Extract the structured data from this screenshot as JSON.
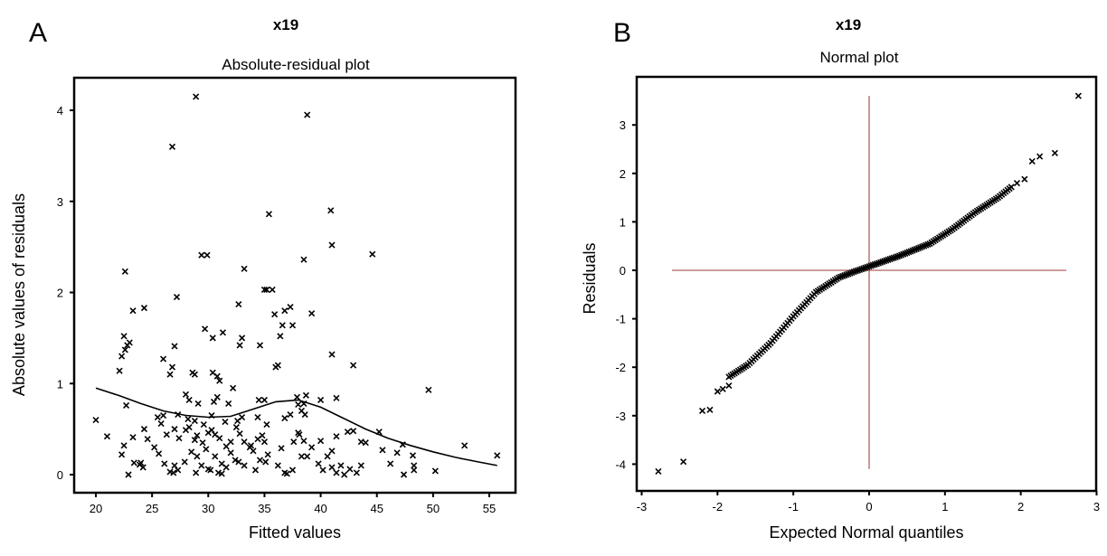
{
  "chart_data": [
    {
      "type": "scatter",
      "panel": "A",
      "variable_title": "x19",
      "title": "Absolute-residual plot",
      "xlabel": "Fitted values",
      "ylabel": "Absolute values of residuals",
      "xlim": [
        18.1,
        57.5
      ],
      "ylim": [
        -0.2,
        4.35
      ],
      "xticks": [
        20,
        25,
        30,
        35,
        40,
        45,
        50,
        55
      ],
      "yticks": [
        0,
        1,
        2,
        3,
        4
      ],
      "grid": false,
      "marker": "x",
      "points": [
        [
          28.9,
          4.15
        ],
        [
          38.8,
          3.95
        ],
        [
          26.8,
          3.6
        ],
        [
          35.4,
          2.86
        ],
        [
          40.9,
          2.9
        ],
        [
          41.0,
          2.52
        ],
        [
          44.6,
          2.42
        ],
        [
          29.4,
          2.41
        ],
        [
          29.9,
          2.41
        ],
        [
          33.2,
          2.26
        ],
        [
          38.5,
          2.36
        ],
        [
          22.6,
          2.23
        ],
        [
          35.0,
          2.03
        ],
        [
          35.2,
          2.03
        ],
        [
          35.7,
          2.03
        ],
        [
          27.2,
          1.95
        ],
        [
          32.7,
          1.87
        ],
        [
          23.3,
          1.8
        ],
        [
          24.3,
          1.83
        ],
        [
          36.8,
          1.8
        ],
        [
          39.2,
          1.77
        ],
        [
          37.3,
          1.84
        ],
        [
          35.9,
          1.76
        ],
        [
          36.6,
          1.64
        ],
        [
          37.5,
          1.64
        ],
        [
          22.5,
          1.52
        ],
        [
          23.0,
          1.45
        ],
        [
          22.8,
          1.42
        ],
        [
          22.3,
          1.3
        ],
        [
          22.6,
          1.37
        ],
        [
          22.1,
          1.14
        ],
        [
          27.0,
          1.41
        ],
        [
          29.7,
          1.6
        ],
        [
          30.4,
          1.5
        ],
        [
          32.8,
          1.42
        ],
        [
          33.0,
          1.5
        ],
        [
          31.3,
          1.56
        ],
        [
          36.4,
          1.52
        ],
        [
          34.6,
          1.42
        ],
        [
          36.2,
          1.2
        ],
        [
          36.0,
          1.18
        ],
        [
          41.0,
          1.32
        ],
        [
          42.9,
          1.2
        ],
        [
          26.0,
          1.27
        ],
        [
          26.8,
          1.18
        ],
        [
          26.6,
          1.1
        ],
        [
          28.6,
          1.12
        ],
        [
          28.8,
          1.1
        ],
        [
          30.4,
          1.12
        ],
        [
          30.8,
          1.08
        ],
        [
          31.0,
          1.03
        ],
        [
          32.2,
          0.95
        ],
        [
          28.0,
          0.88
        ],
        [
          28.3,
          0.82
        ],
        [
          29.1,
          0.78
        ],
        [
          30.8,
          0.85
        ],
        [
          30.5,
          0.8
        ],
        [
          31.8,
          0.78
        ],
        [
          34.5,
          0.82
        ],
        [
          35.0,
          0.82
        ],
        [
          37.9,
          0.85
        ],
        [
          38.7,
          0.87
        ],
        [
          40.0,
          0.82
        ],
        [
          41.4,
          0.84
        ],
        [
          22.7,
          0.76
        ],
        [
          26.0,
          0.65
        ],
        [
          27.3,
          0.66
        ],
        [
          28.2,
          0.61
        ],
        [
          28.8,
          0.59
        ],
        [
          29.6,
          0.55
        ],
        [
          30.3,
          0.65
        ],
        [
          31.5,
          0.58
        ],
        [
          32.6,
          0.59
        ],
        [
          33.0,
          0.63
        ],
        [
          34.4,
          0.63
        ],
        [
          35.2,
          0.55
        ],
        [
          36.8,
          0.62
        ],
        [
          37.3,
          0.66
        ],
        [
          38.3,
          0.7
        ],
        [
          38.6,
          0.66
        ],
        [
          38.0,
          0.77
        ],
        [
          38.5,
          0.78
        ],
        [
          21.0,
          0.42
        ],
        [
          22.5,
          0.32
        ],
        [
          23.3,
          0.41
        ],
        [
          24.3,
          0.5
        ],
        [
          24.6,
          0.39
        ],
        [
          25.5,
          0.63
        ],
        [
          25.8,
          0.56
        ],
        [
          26.3,
          0.44
        ],
        [
          27.0,
          0.5
        ],
        [
          27.4,
          0.4
        ],
        [
          28.0,
          0.49
        ],
        [
          28.3,
          0.52
        ],
        [
          28.8,
          0.38
        ],
        [
          29.0,
          0.43
        ],
        [
          29.5,
          0.35
        ],
        [
          30.0,
          0.46
        ],
        [
          30.3,
          0.49
        ],
        [
          30.6,
          0.44
        ],
        [
          31.0,
          0.4
        ],
        [
          31.6,
          0.31
        ],
        [
          32.0,
          0.36
        ],
        [
          32.5,
          0.52
        ],
        [
          32.8,
          0.45
        ],
        [
          33.2,
          0.36
        ],
        [
          33.7,
          0.3
        ],
        [
          34.0,
          0.26
        ],
        [
          34.4,
          0.39
        ],
        [
          34.8,
          0.43
        ],
        [
          35.0,
          0.36
        ],
        [
          36.5,
          0.29
        ],
        [
          37.6,
          0.36
        ],
        [
          38.1,
          0.44
        ],
        [
          38.0,
          0.46
        ],
        [
          38.5,
          0.37
        ],
        [
          40.0,
          0.37
        ],
        [
          41.0,
          0.26
        ],
        [
          41.4,
          0.42
        ],
        [
          42.4,
          0.47
        ],
        [
          42.9,
          0.48
        ],
        [
          43.6,
          0.36
        ],
        [
          44.0,
          0.35
        ],
        [
          45.2,
          0.47
        ],
        [
          46.8,
          0.24
        ],
        [
          47.3,
          0.33
        ],
        [
          20.0,
          0.6
        ],
        [
          22.3,
          0.22
        ],
        [
          23.4,
          0.13
        ],
        [
          23.9,
          0.11
        ],
        [
          24.2,
          0.08
        ],
        [
          25.2,
          0.3
        ],
        [
          25.6,
          0.23
        ],
        [
          26.1,
          0.12
        ],
        [
          26.6,
          0.03
        ],
        [
          27.0,
          0.1
        ],
        [
          27.3,
          0.05
        ],
        [
          27.9,
          0.14
        ],
        [
          28.5,
          0.25
        ],
        [
          29.0,
          0.2
        ],
        [
          29.4,
          0.1
        ],
        [
          29.8,
          0.28
        ],
        [
          30.2,
          0.05
        ],
        [
          30.6,
          0.2
        ],
        [
          30.9,
          0.02
        ],
        [
          31.2,
          0.12
        ],
        [
          31.6,
          0.08
        ],
        [
          32.0,
          0.24
        ],
        [
          32.4,
          0.16
        ],
        [
          32.7,
          0.14
        ],
        [
          33.2,
          0.1
        ],
        [
          33.8,
          0.32
        ],
        [
          34.2,
          0.05
        ],
        [
          34.6,
          0.16
        ],
        [
          35.1,
          0.14
        ],
        [
          35.3,
          0.22
        ],
        [
          36.2,
          0.1
        ],
        [
          36.8,
          0.02
        ],
        [
          37.5,
          0.05
        ],
        [
          38.3,
          0.2
        ],
        [
          38.8,
          0.2
        ],
        [
          39.2,
          0.3
        ],
        [
          39.8,
          0.12
        ],
        [
          40.2,
          0.05
        ],
        [
          40.6,
          0.2
        ],
        [
          41.0,
          0.08
        ],
        [
          41.4,
          0.02
        ],
        [
          41.8,
          0.1
        ],
        [
          42.1,
          0.0
        ],
        [
          42.6,
          0.06
        ],
        [
          43.2,
          0.02
        ],
        [
          43.6,
          0.1
        ],
        [
          45.5,
          0.27
        ],
        [
          46.2,
          0.12
        ],
        [
          47.4,
          0.0
        ],
        [
          48.2,
          0.21
        ],
        [
          48.3,
          0.1
        ],
        [
          48.3,
          0.05
        ],
        [
          49.6,
          0.93
        ],
        [
          50.2,
          0.04
        ],
        [
          52.8,
          0.32
        ],
        [
          55.7,
          0.21
        ],
        [
          22.9,
          0.0
        ],
        [
          24.0,
          0.13
        ],
        [
          26.9,
          0.02
        ],
        [
          28.9,
          0.02
        ],
        [
          30.0,
          0.06
        ],
        [
          31.2,
          0.01
        ],
        [
          37.0,
          0.01
        ]
      ],
      "smooth_curve": [
        [
          20.0,
          0.95
        ],
        [
          22.0,
          0.87
        ],
        [
          24.0,
          0.78
        ],
        [
          26.0,
          0.7
        ],
        [
          28.0,
          0.65
        ],
        [
          30.0,
          0.63
        ],
        [
          32.0,
          0.64
        ],
        [
          34.0,
          0.72
        ],
        [
          36.0,
          0.8
        ],
        [
          38.0,
          0.82
        ],
        [
          40.0,
          0.74
        ],
        [
          42.0,
          0.62
        ],
        [
          44.0,
          0.5
        ],
        [
          46.0,
          0.4
        ],
        [
          48.0,
          0.32
        ],
        [
          50.0,
          0.25
        ],
        [
          52.0,
          0.19
        ],
        [
          54.0,
          0.14
        ],
        [
          55.7,
          0.1
        ]
      ]
    },
    {
      "type": "scatter",
      "panel": "B",
      "variable_title": "x19",
      "title": "Normal plot",
      "xlabel": "Expected Normal quantiles",
      "ylabel": "Residuals",
      "xlim": [
        -3.05,
        3.05
      ],
      "ylim": [
        -4.6,
        3.95
      ],
      "xticks": [
        -3,
        -2,
        -1,
        0,
        1,
        2,
        3
      ],
      "yticks": [
        -4,
        -3,
        -2,
        -1,
        0,
        1,
        2,
        3
      ],
      "grid": false,
      "marker": "x",
      "reference_lines": {
        "x": 0,
        "y": 0,
        "color": "#b06060",
        "x_extent": [
          -2.6,
          2.6
        ],
        "y_extent": [
          -4.1,
          3.6
        ]
      },
      "extreme_points": [
        [
          -2.78,
          -4.15
        ],
        [
          -2.45,
          -3.95
        ],
        [
          -2.2,
          -2.9
        ],
        [
          -2.1,
          -2.88
        ],
        [
          -2.0,
          -2.5
        ],
        [
          -1.93,
          -2.45
        ],
        [
          -1.85,
          -2.38
        ],
        [
          1.95,
          1.8
        ],
        [
          2.05,
          1.88
        ],
        [
          2.15,
          2.25
        ],
        [
          2.25,
          2.35
        ],
        [
          2.45,
          2.42
        ],
        [
          2.76,
          3.6
        ]
      ],
      "curve_knots": [
        [
          -1.85,
          -2.2
        ],
        [
          -1.6,
          -1.95
        ],
        [
          -1.3,
          -1.5
        ],
        [
          -1.0,
          -0.95
        ],
        [
          -0.7,
          -0.45
        ],
        [
          -0.4,
          -0.15
        ],
        [
          -0.2,
          -0.03
        ],
        [
          0.0,
          0.08
        ],
        [
          0.4,
          0.3
        ],
        [
          0.8,
          0.55
        ],
        [
          1.1,
          0.85
        ],
        [
          1.4,
          1.2
        ],
        [
          1.7,
          1.5
        ],
        [
          1.9,
          1.75
        ]
      ]
    }
  ]
}
